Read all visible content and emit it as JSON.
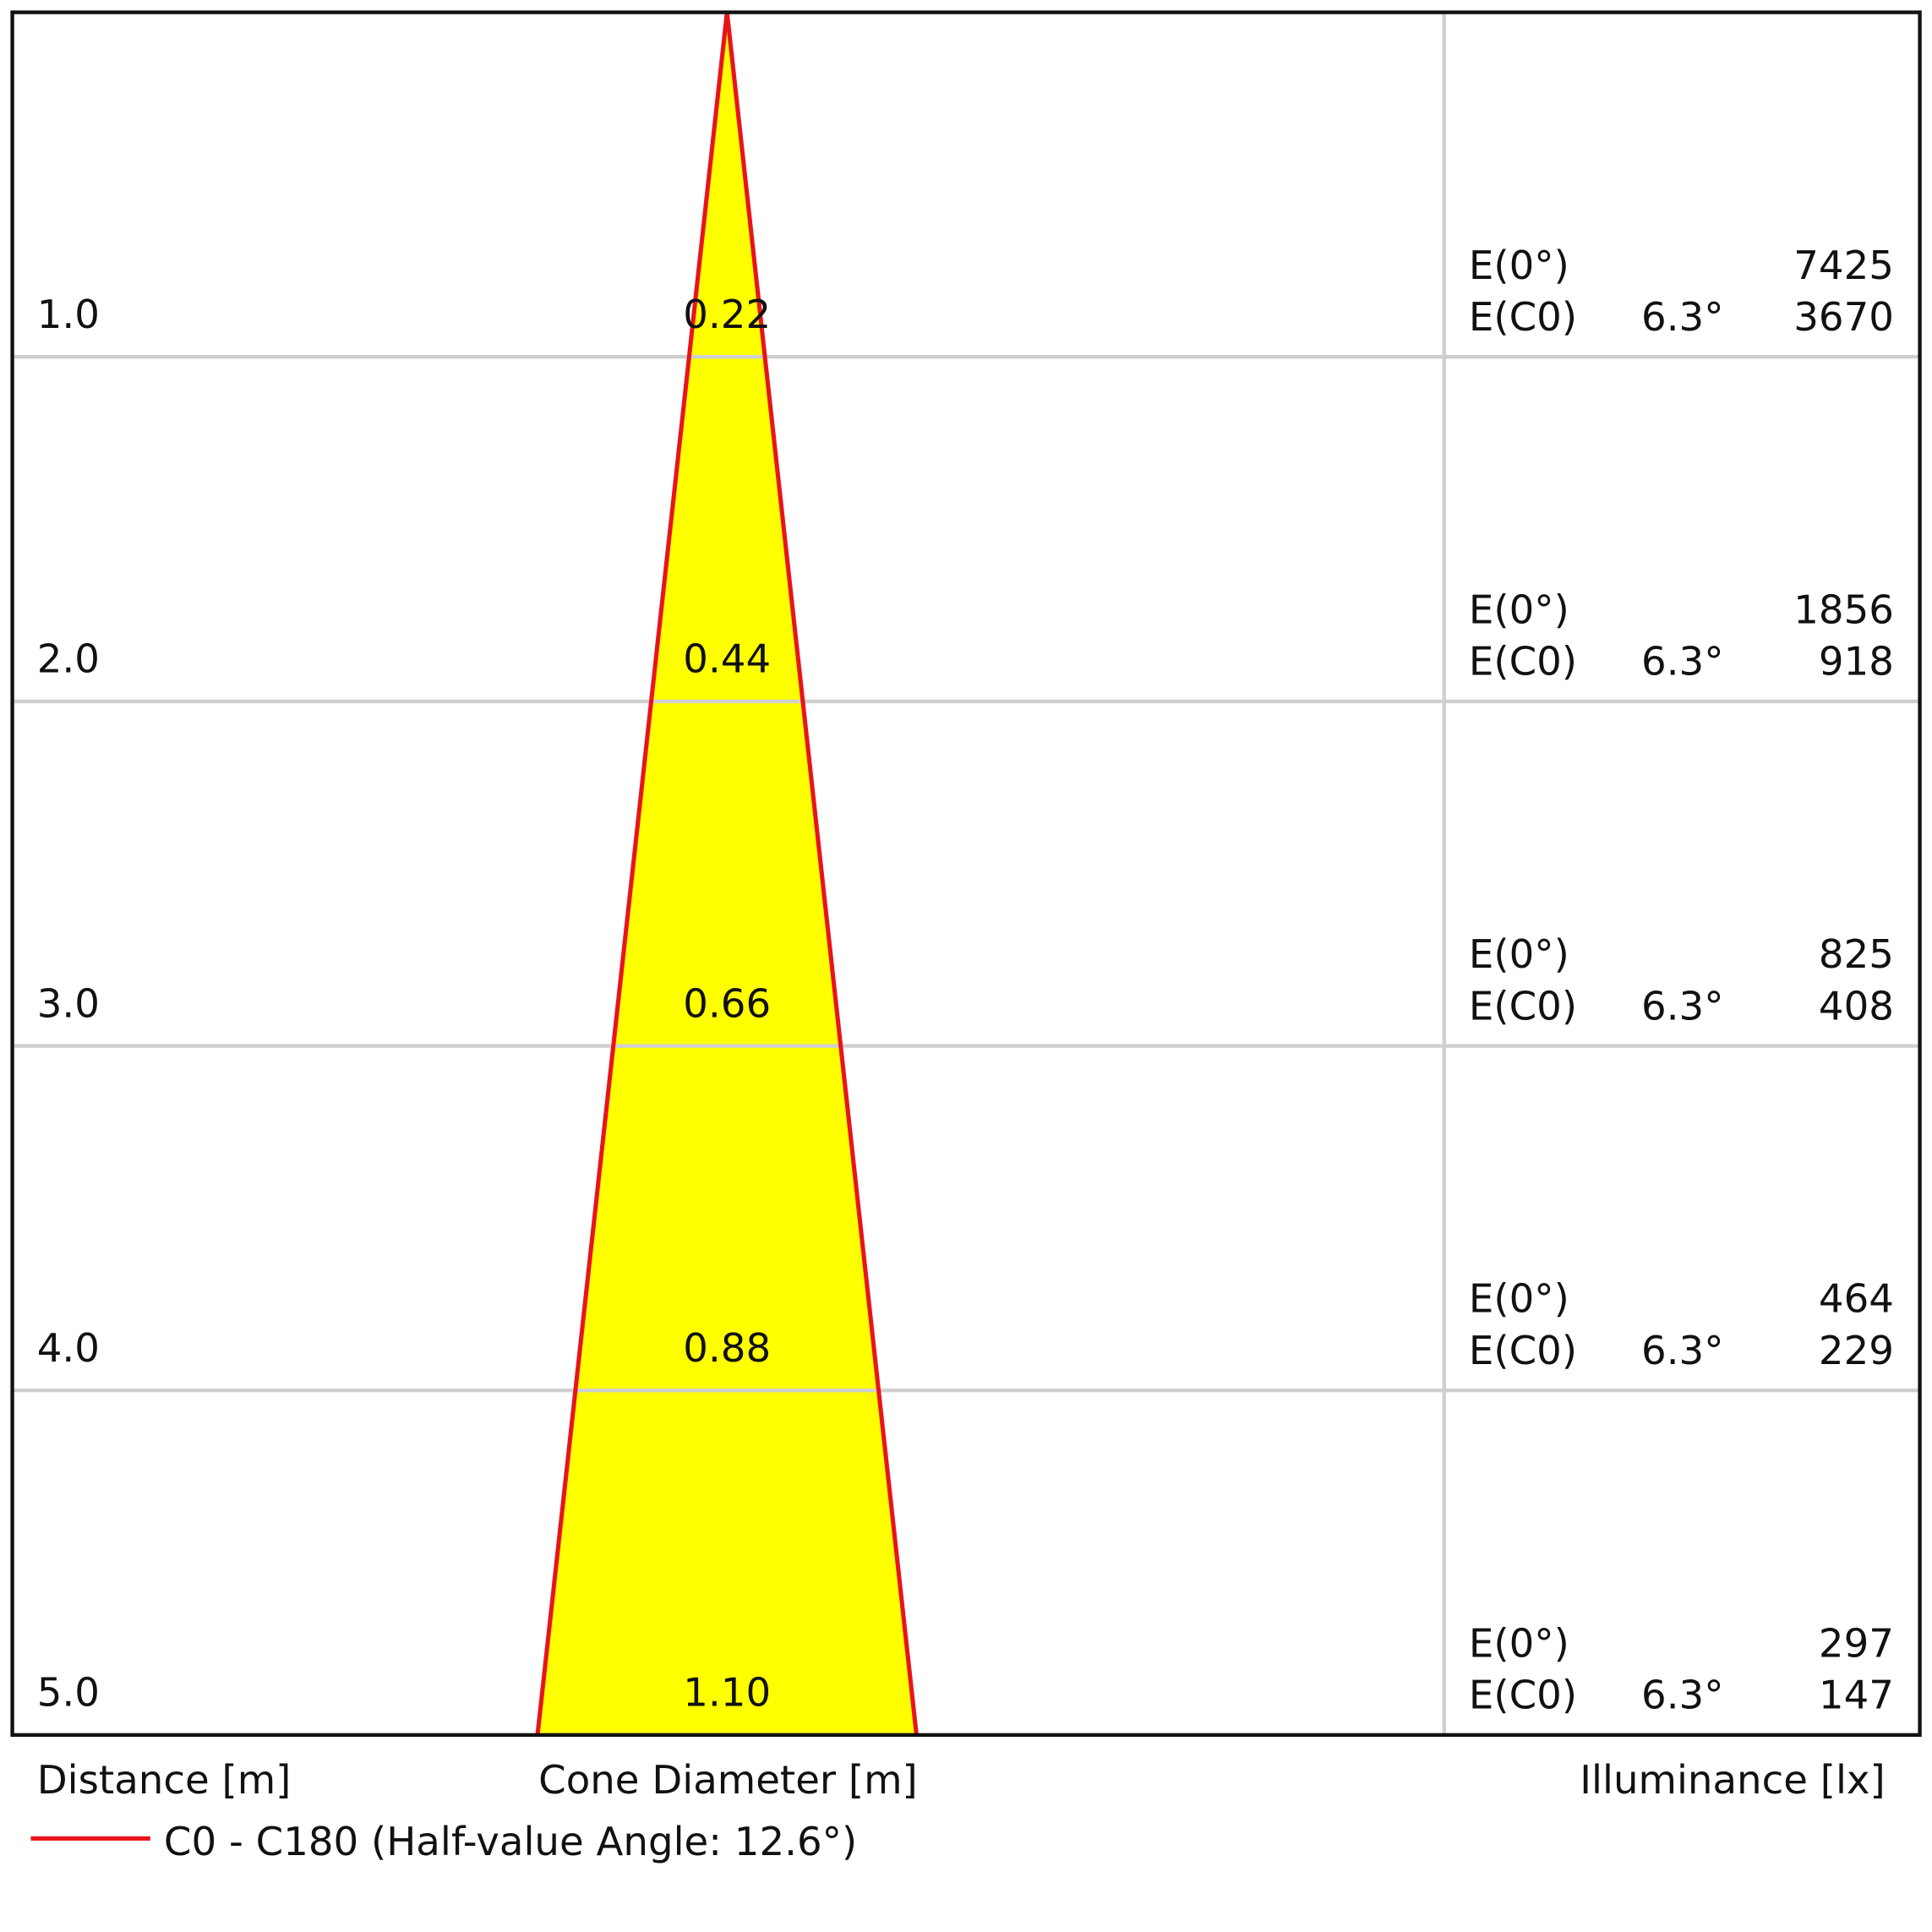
{
  "chart_data": {
    "type": "cone",
    "distances": [
      {
        "value": 1,
        "label": "1.0"
      },
      {
        "value": 2,
        "label": "2.0"
      },
      {
        "value": 3,
        "label": "3.0"
      },
      {
        "value": 4,
        "label": "4.0"
      },
      {
        "value": 5,
        "label": "5.0"
      }
    ],
    "diameters": [
      0.22,
      0.44,
      0.66,
      0.88,
      {
        "value": 1.1,
        "label": "1.10"
      }
    ],
    "e0_label": "E(0°)",
    "ec0_label": "E(C0)",
    "e0": [
      7425,
      1856,
      825,
      464,
      297
    ],
    "ec0": [
      3670,
      918,
      408,
      229,
      147
    ],
    "ec0_angles": [
      {
        "value": 6.3,
        "label": "6.3°"
      },
      {
        "value": 6.3,
        "label": "6.3°"
      },
      {
        "value": 6.3,
        "label": "6.3°"
      },
      {
        "value": 6.3,
        "label": "6.3°"
      },
      {
        "value": 6.3,
        "label": "6.3°"
      }
    ],
    "distance_label": "Distance [m]",
    "diameter_label": "Cone Diameter [m]",
    "illuminance_label": "Illuminance [lx]",
    "series_name": "C0 - C180 (Half-value Angle: 12.6°)",
    "line_color": "#e8141b",
    "fill_color": "#ffff00"
  }
}
